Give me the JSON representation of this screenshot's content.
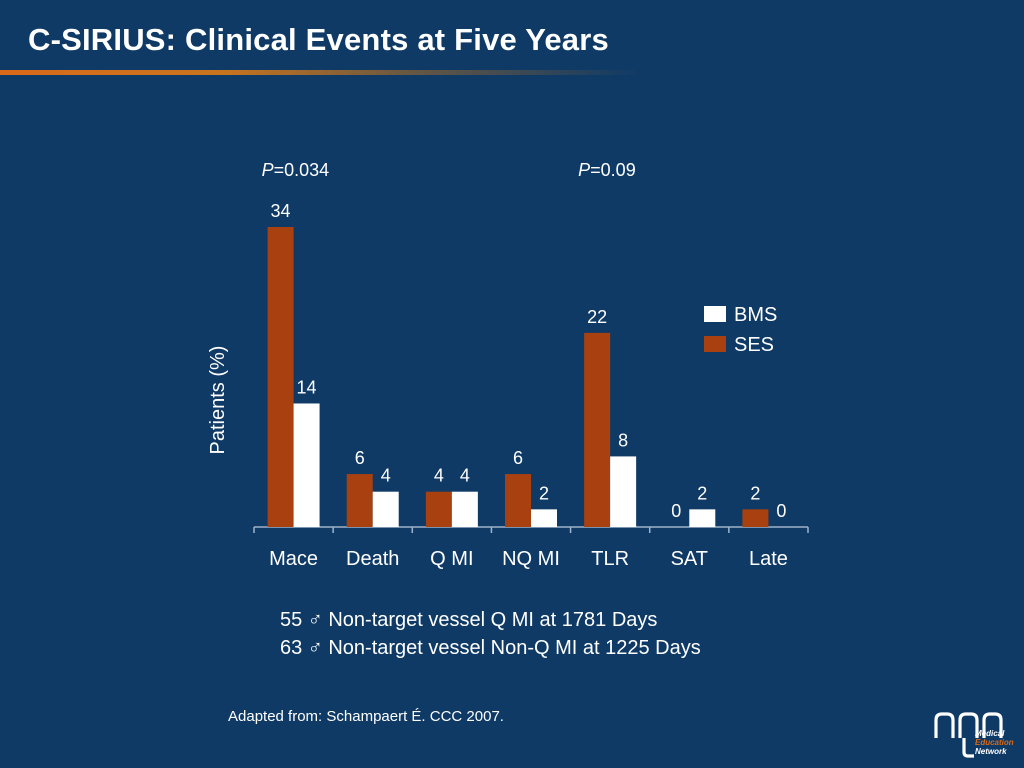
{
  "slide": {
    "title": "C-SIRIUS: Clinical Events at Five Years"
  },
  "chart_data": {
    "type": "bar",
    "ylabel": "Patients (%)",
    "ylim": [
      0,
      34
    ],
    "grid": false,
    "legend_position": "right",
    "categories": [
      "Mace",
      "Death",
      "Q MI",
      "NQ MI",
      "TLR",
      "SAT",
      "Late"
    ],
    "series": [
      {
        "name": "SES",
        "color": "#a8410f",
        "values": [
          34,
          6,
          4,
          6,
          22,
          0,
          2
        ]
      },
      {
        "name": "BMS",
        "color": "#ffffff",
        "values": [
          14,
          4,
          4,
          2,
          8,
          2,
          0
        ]
      }
    ],
    "legend_order": [
      "BMS",
      "SES"
    ],
    "annotations": [
      {
        "italic": "P",
        "text": "=0.034",
        "category": "Mace"
      },
      {
        "italic": "P",
        "text": "=0.09",
        "category": "TLR"
      }
    ]
  },
  "notes": [
    "55 ♂ Non-target vessel Q MI at 1781 Days",
    "63 ♂ Non-target vessel Non-Q MI at 1225 Days"
  ],
  "source": "Adapted from: Schampaert  É. CCC 2007.",
  "logo": {
    "lines": [
      "Medical",
      "Education",
      "Network"
    ],
    "accent_color": "#d96a1a"
  }
}
